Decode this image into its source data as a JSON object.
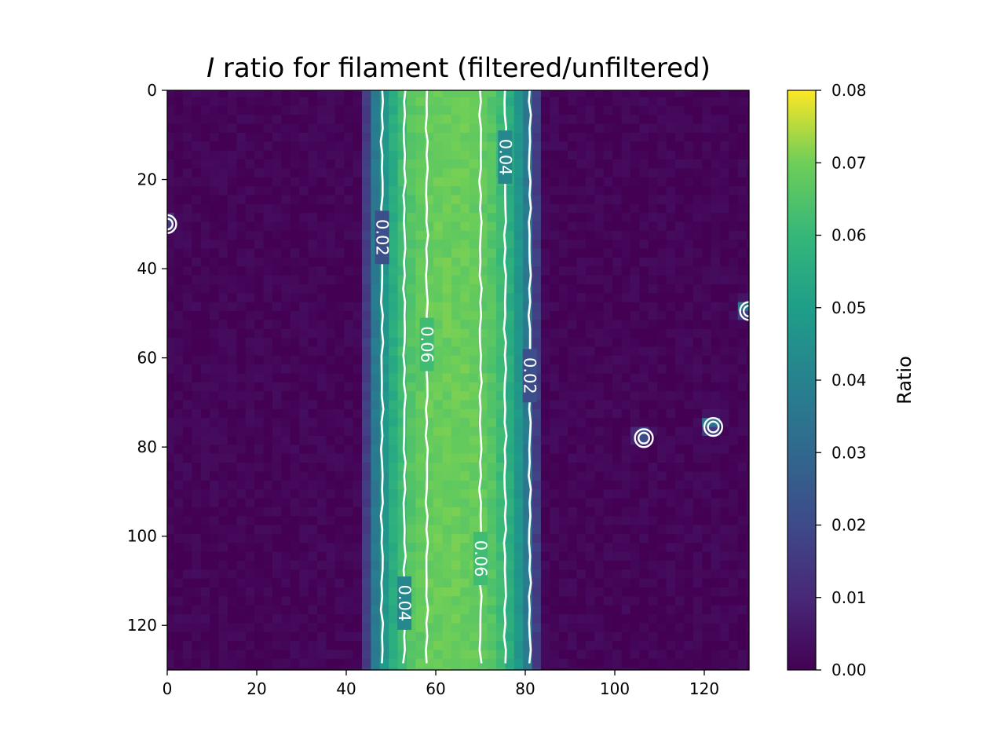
{
  "chart_data": {
    "type": "heatmap",
    "title_italic": "I",
    "title_rest": " ratio for filament (filtered/unfiltered)",
    "xlabel": "",
    "ylabel": "",
    "xlim": [
      0,
      130
    ],
    "ylim": [
      130,
      0
    ],
    "x_ticks": [
      0,
      20,
      40,
      60,
      80,
      100,
      120
    ],
    "y_ticks": [
      0,
      20,
      40,
      60,
      80,
      100,
      120
    ],
    "filament": {
      "center_x": 64,
      "peak_ratio": 0.068
    },
    "contour_levels": [
      0.02,
      0.04,
      0.06
    ],
    "contour_lines_x": [
      {
        "level": 0.02,
        "x": 48
      },
      {
        "level": 0.04,
        "x": 53
      },
      {
        "level": 0.06,
        "x": 58
      },
      {
        "level": 0.06,
        "x": 70
      },
      {
        "level": 0.04,
        "x": 75.5
      },
      {
        "level": 0.02,
        "x": 81
      }
    ],
    "contour_labels": [
      {
        "text": "0.02",
        "x": 48,
        "y": 33
      },
      {
        "text": "0.06",
        "x": 58,
        "y": 57
      },
      {
        "text": "0.04",
        "x": 53,
        "y": 115
      },
      {
        "text": "0.04",
        "x": 75.5,
        "y": 15
      },
      {
        "text": "0.02",
        "x": 81,
        "y": 64
      },
      {
        "text": "0.06",
        "x": 70,
        "y": 105
      }
    ],
    "hotspots": [
      {
        "x": 0,
        "y": 30,
        "value": 0.03
      },
      {
        "x": 130,
        "y": 49.5,
        "value": 0.055
      },
      {
        "x": 106.5,
        "y": 78,
        "value": 0.03
      },
      {
        "x": 122,
        "y": 75.5,
        "value": 0.055
      }
    ],
    "colorbar": {
      "label": "Ratio",
      "min": 0.0,
      "max": 0.08,
      "ticks": [
        "0.00",
        "0.01",
        "0.02",
        "0.03",
        "0.04",
        "0.05",
        "0.06",
        "0.07",
        "0.08"
      ],
      "colormap": "viridis"
    }
  }
}
